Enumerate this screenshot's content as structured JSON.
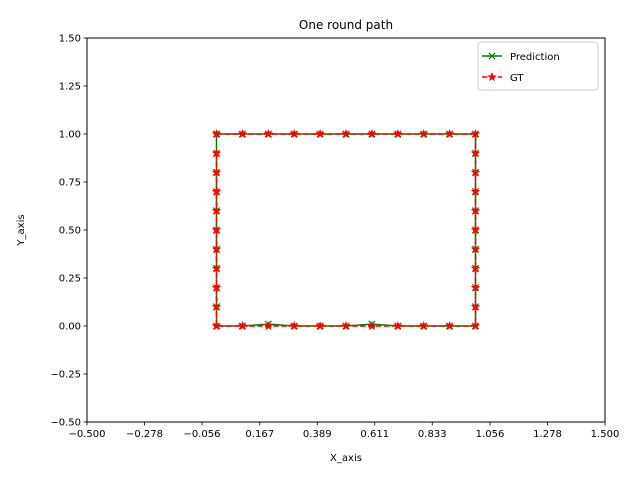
{
  "chart_data": {
    "type": "line",
    "title": "One round path",
    "xlabel": "X_axis",
    "ylabel": "Y_axis",
    "xlim": [
      -0.5,
      1.5
    ],
    "ylim": [
      -0.5,
      1.5
    ],
    "xticks": [
      -0.5,
      -0.278,
      -0.056,
      0.167,
      0.389,
      0.611,
      0.833,
      1.056,
      1.278,
      1.5
    ],
    "xtick_labels": [
      "−0.500",
      "−0.278",
      "−0.056",
      "0.167",
      "0.389",
      "0.611",
      "0.833",
      "1.056",
      "1.278",
      "1.500"
    ],
    "yticks": [
      -0.5,
      -0.25,
      0,
      0.25,
      0.5,
      0.75,
      1.0,
      1.25,
      1.5
    ],
    "ytick_labels": [
      "−0.50",
      "−0.25",
      "0.00",
      "0.25",
      "0.50",
      "0.75",
      "1.00",
      "1.25",
      "1.50"
    ],
    "grid": false,
    "legend_position": "top-right",
    "series": [
      {
        "name": "Prediction",
        "color": "#008000",
        "line_style": "solid",
        "marker": "x",
        "x": [
          0.0,
          0.1,
          0.2,
          0.3,
          0.4,
          0.5,
          0.6,
          0.7,
          0.8,
          0.9,
          1.0,
          1.0,
          1.0,
          1.0,
          1.0,
          1.0,
          1.0,
          1.0,
          1.0,
          1.0,
          1.0,
          0.9,
          0.8,
          0.7,
          0.6,
          0.5,
          0.4,
          0.3,
          0.2,
          0.1,
          0.0,
          0.0,
          0.0,
          0.0,
          0.0,
          0.0,
          0.0,
          0.0,
          0.0,
          0.0,
          0.0
        ],
        "y": [
          1.0,
          1.0,
          1.0,
          1.0,
          1.0,
          1.0,
          1.0,
          1.0,
          1.0,
          1.0,
          1.0,
          0.9,
          0.8,
          0.7,
          0.6,
          0.5,
          0.4,
          0.3,
          0.2,
          0.1,
          0.0,
          0.0,
          0.0,
          0.0,
          0.01,
          0.0,
          0.0,
          0.0,
          0.01,
          0.0,
          0.0,
          0.1,
          0.2,
          0.3,
          0.4,
          0.5,
          0.6,
          0.7,
          0.8,
          0.9,
          1.0
        ]
      },
      {
        "name": "GT",
        "color": "#ff0000",
        "line_style": "dashed",
        "marker": "*",
        "x": [
          0.0,
          0.1,
          0.2,
          0.3,
          0.4,
          0.5,
          0.6,
          0.7,
          0.8,
          0.9,
          1.0,
          1.0,
          1.0,
          1.0,
          1.0,
          1.0,
          1.0,
          1.0,
          1.0,
          1.0,
          1.0,
          0.9,
          0.8,
          0.7,
          0.6,
          0.5,
          0.4,
          0.3,
          0.2,
          0.1,
          0.0,
          0.0,
          0.0,
          0.0,
          0.0,
          0.0,
          0.0,
          0.0,
          0.0,
          0.0
        ],
        "y": [
          1.0,
          1.0,
          1.0,
          1.0,
          1.0,
          1.0,
          1.0,
          1.0,
          1.0,
          1.0,
          1.0,
          0.9,
          0.8,
          0.7,
          0.6,
          0.5,
          0.4,
          0.3,
          0.2,
          0.1,
          0.0,
          0.0,
          0.0,
          0.0,
          0.0,
          0.0,
          0.0,
          0.0,
          0.0,
          0.0,
          0.0,
          0.1,
          0.2,
          0.3,
          0.4,
          0.5,
          0.6,
          0.7,
          0.8,
          0.9
        ]
      }
    ]
  }
}
